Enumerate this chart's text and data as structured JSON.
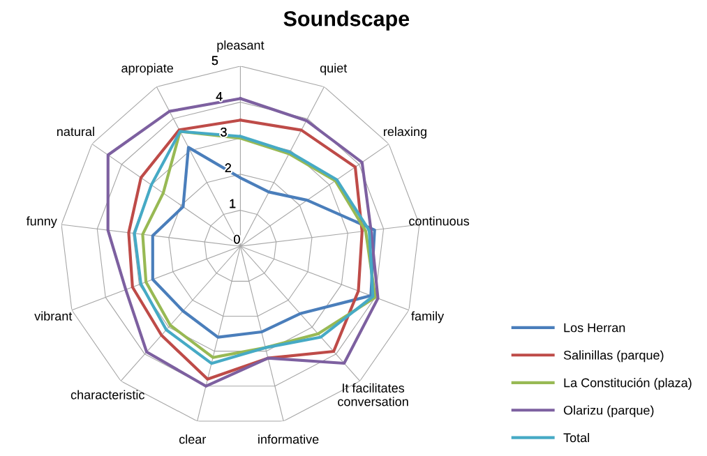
{
  "chart_data": {
    "type": "radar",
    "title": "Soundscape",
    "categories": [
      "pleasant",
      "quiet",
      "relaxing",
      "continuous",
      "family",
      "It facilitates conversation",
      "informative",
      "clear",
      "characteristic",
      "vibrant",
      "funny",
      "natural",
      "apropiate"
    ],
    "ylim": [
      0,
      5
    ],
    "yticks": [
      0,
      1,
      2,
      3,
      4,
      5
    ],
    "grid": true,
    "legend": "bottom right",
    "marker": "none",
    "series": [
      {
        "name": "Los Herran",
        "color": "#4a7ebb",
        "values": [
          1.9,
          1.7,
          2.25,
          3.75,
          3.87,
          2.5,
          2.45,
          2.6,
          2.4,
          2.6,
          2.45,
          1.93,
          3.1
        ]
      },
      {
        "name": "Salinillas (parque)",
        "color": "#be4b48",
        "values": [
          3.5,
          3.64,
          3.87,
          3.4,
          3.5,
          3.9,
          3.2,
          3.8,
          3.3,
          3.2,
          3.12,
          3.35,
          3.65
        ]
      },
      {
        "name": "La Constitución (plaza)",
        "color": "#98b954",
        "values": [
          3.0,
          2.9,
          3.2,
          3.5,
          4.0,
          3.25,
          2.9,
          3.18,
          2.93,
          2.8,
          2.73,
          2.6,
          3.6
        ]
      },
      {
        "name": "Olarizu (parque)",
        "color": "#7d60a0",
        "values": [
          4.1,
          3.94,
          4.1,
          3.65,
          4.08,
          4.34,
          3.2,
          4.0,
          3.92,
          3.4,
          3.7,
          4.46,
          4.23
        ]
      },
      {
        "name": "Total",
        "color": "#46aac5",
        "values": [
          3.05,
          2.95,
          3.25,
          3.6,
          3.93,
          3.37,
          2.9,
          3.35,
          3.1,
          2.95,
          2.96,
          3.0,
          3.6
        ]
      }
    ]
  }
}
